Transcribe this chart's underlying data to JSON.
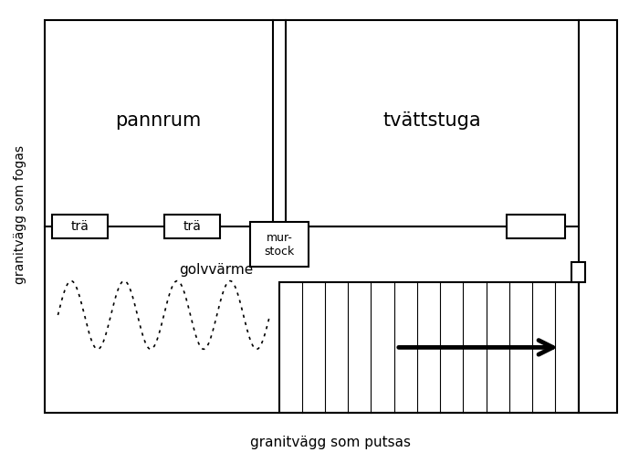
{
  "bg_color": "#ffffff",
  "line_color": "#000000",
  "left_label": "granitvägg som fogas",
  "bottom_label": "granitvägg som putsas",
  "room1_label": "pannrum",
  "room2_label": "tvättstuga",
  "heater_label": "golvvärme",
  "label_tra1": "trä",
  "label_tra2": "trä",
  "label_murstock": "mur-\nstock",
  "figsize": [
    7.0,
    5.07
  ],
  "dpi": 100
}
